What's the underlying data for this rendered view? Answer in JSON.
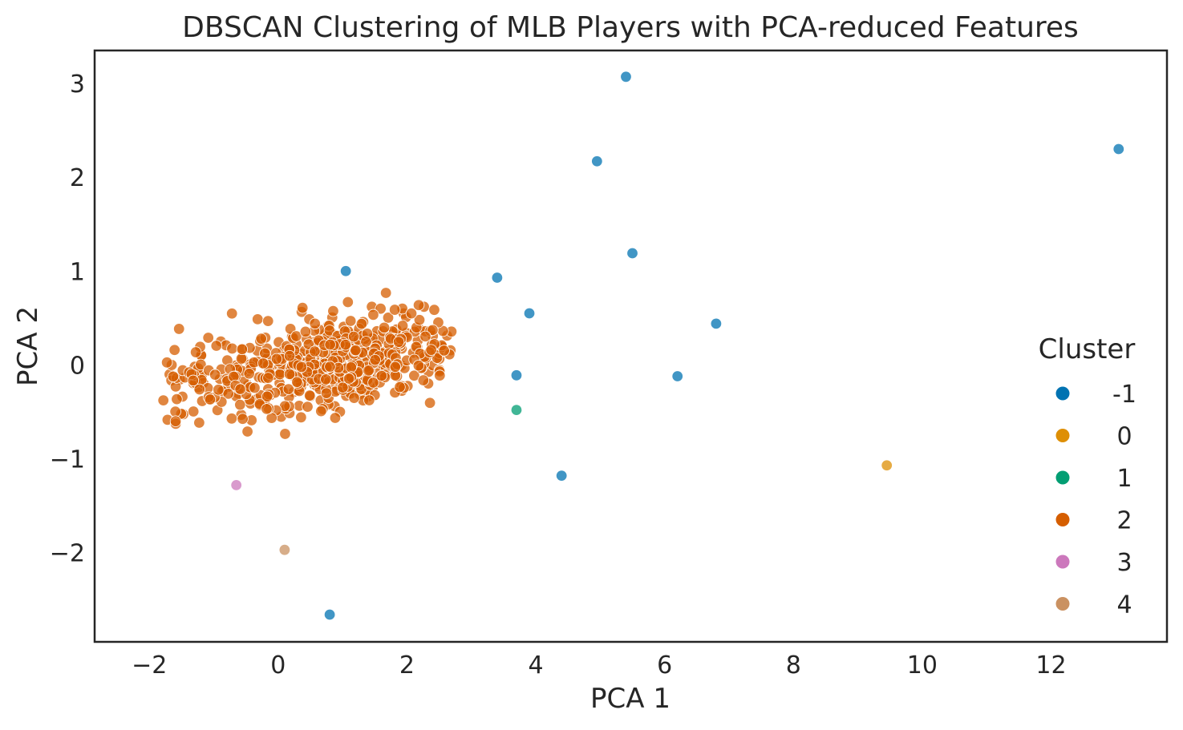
{
  "chart_data": {
    "type": "scatter",
    "title": "DBSCAN Clustering of MLB Players with PCA-reduced Features",
    "xlabel": "PCA 1",
    "ylabel": "PCA 2",
    "xlim": [
      -2.85,
      13.8
    ],
    "ylim": [
      -2.95,
      3.35
    ],
    "xticks": [
      -2,
      0,
      2,
      4,
      6,
      8,
      10,
      12
    ],
    "yticks": [
      -2,
      -1,
      0,
      1,
      2,
      3
    ],
    "grid": false,
    "legend": {
      "title": "Cluster",
      "placement": "right"
    },
    "series": [
      {
        "name": "-1",
        "color": "#0173b2",
        "points": [
          [
            5.4,
            3.07
          ],
          [
            4.95,
            2.17
          ],
          [
            13.05,
            2.3
          ],
          [
            5.5,
            1.19
          ],
          [
            1.05,
            1.0
          ],
          [
            3.4,
            0.93
          ],
          [
            3.9,
            0.55
          ],
          [
            6.8,
            0.44
          ],
          [
            3.7,
            -0.11
          ],
          [
            6.2,
            -0.12
          ],
          [
            4.4,
            -1.18
          ],
          [
            0.8,
            -2.66
          ]
        ]
      },
      {
        "name": "0",
        "color": "#de8f05",
        "points": [
          [
            9.45,
            -1.07
          ]
        ]
      },
      {
        "name": "1",
        "color": "#029e73",
        "points": [
          [
            3.7,
            -0.48
          ]
        ]
      },
      {
        "name": "2",
        "color": "#d55e00",
        "points": []
      },
      {
        "name": "3",
        "color": "#cc78bc",
        "points": [
          [
            -0.65,
            -1.28
          ]
        ]
      },
      {
        "name": "4",
        "color": "#ca9161",
        "points": [
          [
            0.1,
            -1.97
          ]
        ]
      }
    ]
  }
}
